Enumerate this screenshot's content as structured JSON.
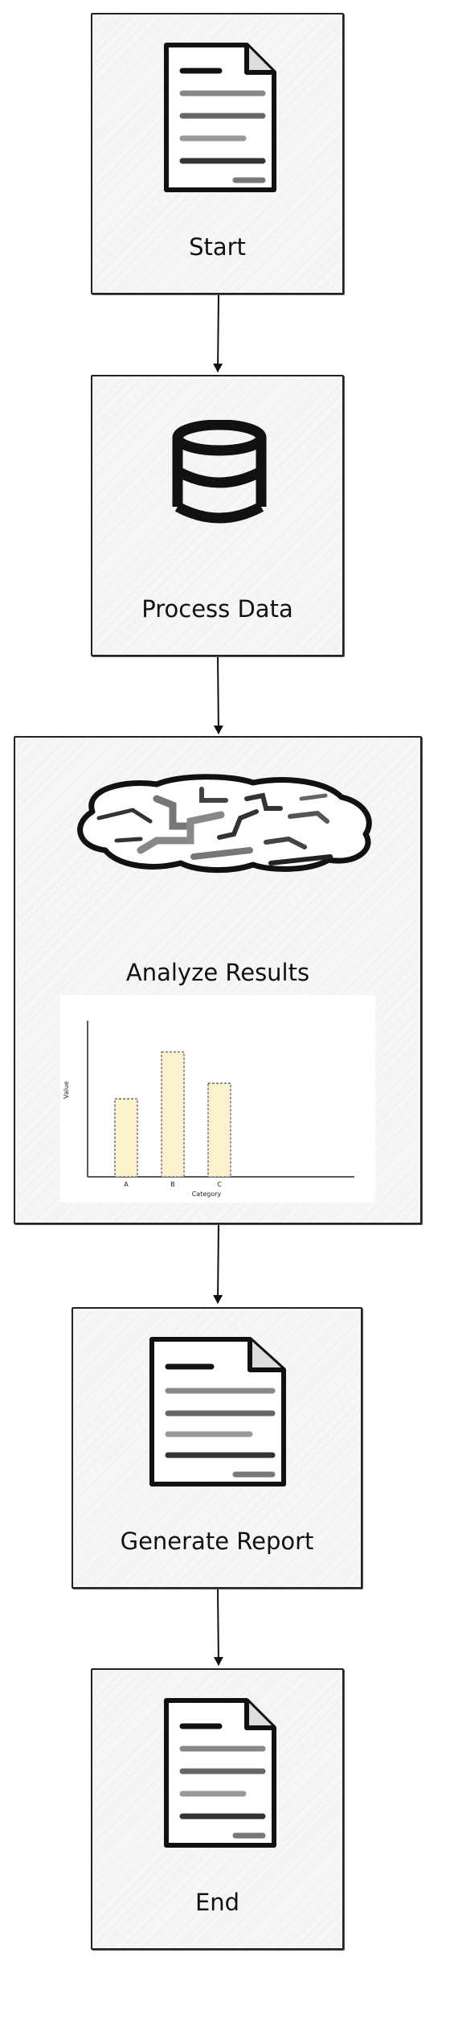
{
  "flow": {
    "start": {
      "label": "Start",
      "icon": "document-icon"
    },
    "process": {
      "label": "Process Data",
      "icon": "database-icon"
    },
    "analyze": {
      "label": "Analyze Results",
      "icon": "brain-icon"
    },
    "report": {
      "label": "Generate Report",
      "icon": "document-icon"
    },
    "end": {
      "label": "End",
      "icon": "document-icon"
    }
  },
  "colors": {
    "bar_fill": "#fbf1cc",
    "bar_stroke": "#555555",
    "border": "#222222",
    "node_fill": "#f6f6f6"
  },
  "chart_data": {
    "type": "bar",
    "categories": [
      "A",
      "B",
      "C"
    ],
    "values": [
      5,
      8,
      6
    ],
    "title": "",
    "xlabel": "Category",
    "ylabel": "Value",
    "ylim": [
      0,
      10
    ],
    "grid": false
  }
}
